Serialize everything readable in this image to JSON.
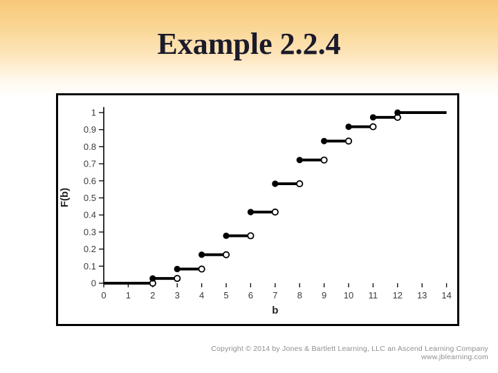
{
  "slide": {
    "title": "Example 2.2.4"
  },
  "footer": {
    "copyright": "Copyright © 2014 by Jones & Bartlett Learning, LLC an Ascend Learning Company",
    "website": "www.jblearning.com"
  },
  "colors": {
    "background_top": "#f8c87a",
    "background_bottom": "#ffffff",
    "title_text": "#1b1b2b",
    "chart_border": "#000000",
    "axis": "#000000",
    "step_line": "#000000",
    "tick_label": "#3a3a3a",
    "footer_text": "#8f8f8f"
  },
  "chart_data": {
    "type": "line",
    "subtype": "step-cdf",
    "title": "",
    "xlabel": "b",
    "ylabel": "F(b)",
    "xlim": [
      0,
      14
    ],
    "ylim": [
      0,
      1
    ],
    "grid": false,
    "legend_position": "none",
    "xticks": [
      0,
      1,
      2,
      3,
      4,
      5,
      6,
      7,
      8,
      9,
      10,
      11,
      12,
      13,
      14
    ],
    "yticks": [
      0,
      0.1,
      0.2,
      0.3,
      0.4,
      0.5,
      0.6,
      0.7,
      0.8,
      0.9,
      1
    ],
    "ytick_labels": [
      "0",
      "0.1",
      "0.2",
      "0.3",
      "0.4",
      "0.5",
      "0.6",
      "0.7",
      "0.8",
      "0.9",
      "1"
    ],
    "segments": [
      {
        "x_start": 0,
        "x_end": 2,
        "F": 0,
        "closed_left": false,
        "open_right": true
      },
      {
        "x_start": 2,
        "x_end": 3,
        "F": 0.028,
        "closed_left": true,
        "open_right": true
      },
      {
        "x_start": 3,
        "x_end": 4,
        "F": 0.083,
        "closed_left": true,
        "open_right": true
      },
      {
        "x_start": 4,
        "x_end": 5,
        "F": 0.167,
        "closed_left": true,
        "open_right": true
      },
      {
        "x_start": 5,
        "x_end": 6,
        "F": 0.278,
        "closed_left": true,
        "open_right": true
      },
      {
        "x_start": 6,
        "x_end": 7,
        "F": 0.417,
        "closed_left": true,
        "open_right": true
      },
      {
        "x_start": 7,
        "x_end": 8,
        "F": 0.583,
        "closed_left": true,
        "open_right": true
      },
      {
        "x_start": 8,
        "x_end": 9,
        "F": 0.722,
        "closed_left": true,
        "open_right": true
      },
      {
        "x_start": 9,
        "x_end": 10,
        "F": 0.833,
        "closed_left": true,
        "open_right": true
      },
      {
        "x_start": 10,
        "x_end": 11,
        "F": 0.917,
        "closed_left": true,
        "open_right": true
      },
      {
        "x_start": 11,
        "x_end": 12,
        "F": 0.972,
        "closed_left": true,
        "open_right": true
      },
      {
        "x_start": 12,
        "x_end": 14,
        "F": 1,
        "closed_left": true,
        "open_right": false
      }
    ]
  }
}
